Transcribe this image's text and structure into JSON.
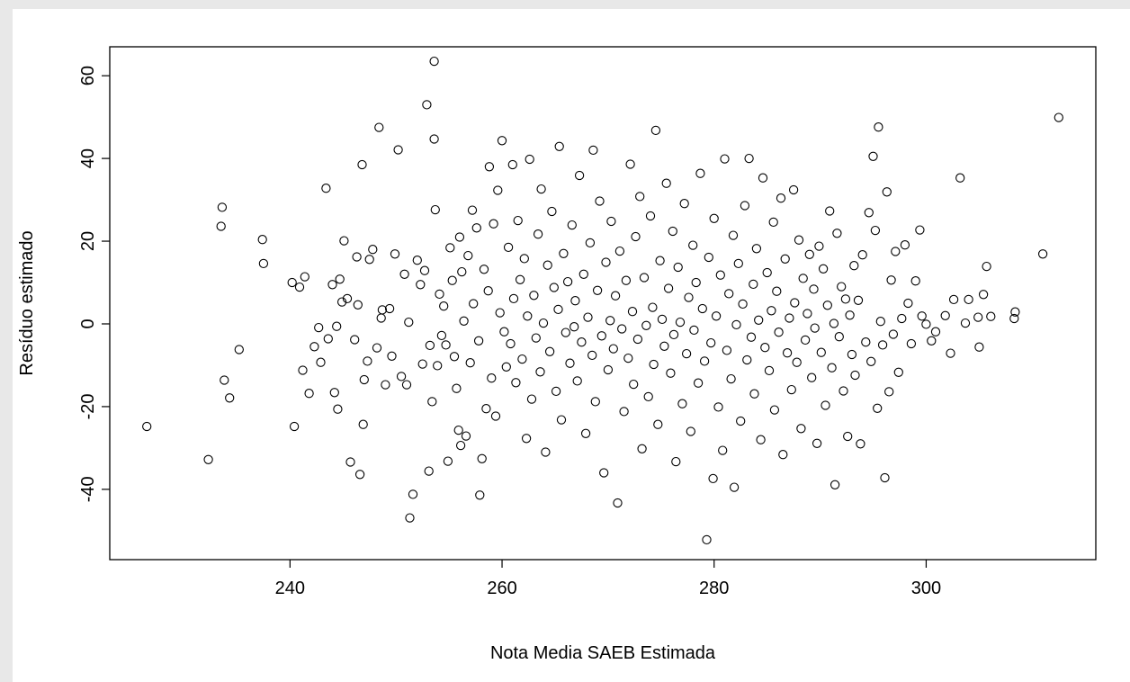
{
  "chart_data": {
    "type": "scatter",
    "title": "",
    "xlabel": "Nota Media SAEB Estimada",
    "ylabel": "Resíduo estimado",
    "xlim": [
      223,
      316
    ],
    "ylim": [
      -57,
      67
    ],
    "x_ticks": [
      240,
      260,
      280,
      300
    ],
    "y_ticks": [
      -40,
      -20,
      0,
      20,
      40,
      60
    ],
    "x_tick_labels": [
      "240",
      "260",
      "280",
      "300"
    ],
    "y_tick_labels": [
      "-40",
      "-20",
      "0",
      "20",
      "40",
      "60"
    ],
    "grid": false,
    "legend": "none",
    "marker": "open-circle",
    "marker_color": "#000000",
    "points": [
      [
        226.5,
        -24.8
      ],
      [
        232.3,
        -32.8
      ],
      [
        233.6,
        28.2
      ],
      [
        233.5,
        23.6
      ],
      [
        233.8,
        -13.6
      ],
      [
        234.3,
        -17.9
      ],
      [
        235.2,
        -6.2
      ],
      [
        237.4,
        20.4
      ],
      [
        237.5,
        14.6
      ],
      [
        240.2,
        10.0
      ],
      [
        240.4,
        -24.8
      ],
      [
        240.9,
        8.9
      ],
      [
        241.2,
        -11.2
      ],
      [
        241.4,
        11.4
      ],
      [
        241.8,
        -16.8
      ],
      [
        242.3,
        -5.5
      ],
      [
        242.7,
        -0.9
      ],
      [
        242.9,
        -9.3
      ],
      [
        243.4,
        32.8
      ],
      [
        243.6,
        -3.6
      ],
      [
        244.0,
        9.5
      ],
      [
        244.2,
        -16.6
      ],
      [
        244.4,
        -0.6
      ],
      [
        244.5,
        -20.6
      ],
      [
        244.7,
        10.8
      ],
      [
        244.9,
        5.3
      ],
      [
        245.1,
        20.1
      ],
      [
        245.4,
        6.1
      ],
      [
        245.7,
        -33.4
      ],
      [
        246.1,
        -3.8
      ],
      [
        246.3,
        16.2
      ],
      [
        246.4,
        4.6
      ],
      [
        246.6,
        -36.4
      ],
      [
        246.8,
        38.5
      ],
      [
        246.9,
        -24.3
      ],
      [
        247.0,
        -13.5
      ],
      [
        247.3,
        -9.0
      ],
      [
        247.5,
        15.6
      ],
      [
        247.8,
        18.0
      ],
      [
        248.2,
        -5.8
      ],
      [
        248.4,
        47.5
      ],
      [
        248.6,
        1.4
      ],
      [
        248.7,
        3.4
      ],
      [
        249.0,
        -14.7
      ],
      [
        249.4,
        3.7
      ],
      [
        249.6,
        -7.8
      ],
      [
        249.9,
        16.9
      ],
      [
        250.2,
        42.1
      ],
      [
        250.5,
        -12.7
      ],
      [
        250.8,
        12.0
      ],
      [
        251.0,
        -14.7
      ],
      [
        251.2,
        0.4
      ],
      [
        251.3,
        -46.9
      ],
      [
        251.6,
        -41.2
      ],
      [
        252.0,
        15.4
      ],
      [
        252.3,
        9.5
      ],
      [
        252.5,
        -9.7
      ],
      [
        252.7,
        12.9
      ],
      [
        252.9,
        53.0
      ],
      [
        253.1,
        -35.6
      ],
      [
        253.2,
        -5.2
      ],
      [
        253.4,
        -18.8
      ],
      [
        253.6,
        44.7
      ],
      [
        253.6,
        63.5
      ],
      [
        253.7,
        27.6
      ],
      [
        253.9,
        -10.1
      ],
      [
        254.1,
        7.2
      ],
      [
        254.3,
        -2.8
      ],
      [
        254.5,
        4.3
      ],
      [
        254.7,
        -5.1
      ],
      [
        254.9,
        -33.2
      ],
      [
        255.1,
        18.4
      ],
      [
        255.3,
        10.5
      ],
      [
        255.5,
        -7.9
      ],
      [
        255.7,
        -15.6
      ],
      [
        255.9,
        -25.7
      ],
      [
        256.0,
        21.0
      ],
      [
        256.1,
        -29.4
      ],
      [
        256.2,
        12.6
      ],
      [
        256.4,
        0.7
      ],
      [
        256.6,
        -27.1
      ],
      [
        256.8,
        16.5
      ],
      [
        257.0,
        -9.4
      ],
      [
        257.2,
        27.5
      ],
      [
        257.3,
        4.9
      ],
      [
        257.6,
        23.2
      ],
      [
        257.8,
        -4.1
      ],
      [
        257.9,
        -41.4
      ],
      [
        258.1,
        -32.6
      ],
      [
        258.3,
        13.2
      ],
      [
        258.5,
        -20.5
      ],
      [
        258.7,
        8.0
      ],
      [
        258.8,
        38.0
      ],
      [
        259.0,
        -13.1
      ],
      [
        259.2,
        24.2
      ],
      [
        259.4,
        -22.3
      ],
      [
        259.6,
        32.3
      ],
      [
        259.8,
        2.7
      ],
      [
        260.0,
        44.3
      ],
      [
        260.2,
        -1.9
      ],
      [
        260.4,
        -10.4
      ],
      [
        260.6,
        18.5
      ],
      [
        260.8,
        -4.8
      ],
      [
        261.0,
        38.5
      ],
      [
        261.1,
        6.1
      ],
      [
        261.3,
        -14.2
      ],
      [
        261.5,
        25.0
      ],
      [
        261.7,
        10.7
      ],
      [
        261.9,
        -8.5
      ],
      [
        262.1,
        15.8
      ],
      [
        262.3,
        -27.7
      ],
      [
        262.4,
        1.9
      ],
      [
        262.6,
        39.8
      ],
      [
        262.8,
        -18.2
      ],
      [
        263.0,
        6.9
      ],
      [
        263.2,
        -3.4
      ],
      [
        263.4,
        21.7
      ],
      [
        263.6,
        -11.6
      ],
      [
        263.7,
        32.6
      ],
      [
        263.9,
        0.2
      ],
      [
        264.1,
        -31.0
      ],
      [
        264.3,
        14.2
      ],
      [
        264.5,
        -6.7
      ],
      [
        264.7,
        27.2
      ],
      [
        264.9,
        8.8
      ],
      [
        265.1,
        -16.3
      ],
      [
        265.3,
        3.5
      ],
      [
        265.4,
        42.9
      ],
      [
        265.6,
        -23.2
      ],
      [
        265.8,
        17.0
      ],
      [
        266.0,
        -2.1
      ],
      [
        266.2,
        10.2
      ],
      [
        266.4,
        -9.5
      ],
      [
        266.6,
        23.9
      ],
      [
        266.8,
        -0.7
      ],
      [
        266.9,
        5.6
      ],
      [
        267.1,
        -13.8
      ],
      [
        267.3,
        35.9
      ],
      [
        267.5,
        -4.4
      ],
      [
        267.7,
        12.0
      ],
      [
        267.9,
        -26.5
      ],
      [
        268.1,
        1.6
      ],
      [
        268.3,
        19.6
      ],
      [
        268.5,
        -7.6
      ],
      [
        268.6,
        42.0
      ],
      [
        268.8,
        -18.8
      ],
      [
        269.0,
        8.1
      ],
      [
        269.2,
        29.7
      ],
      [
        269.4,
        -2.9
      ],
      [
        269.6,
        -36.0
      ],
      [
        269.8,
        14.9
      ],
      [
        270.0,
        -11.1
      ],
      [
        270.2,
        0.8
      ],
      [
        270.3,
        24.8
      ],
      [
        270.5,
        -6.0
      ],
      [
        270.7,
        6.8
      ],
      [
        270.9,
        -43.3
      ],
      [
        271.1,
        17.6
      ],
      [
        271.3,
        -1.2
      ],
      [
        271.5,
        -21.2
      ],
      [
        271.7,
        10.5
      ],
      [
        271.9,
        -8.3
      ],
      [
        272.1,
        38.6
      ],
      [
        272.3,
        3.0
      ],
      [
        272.4,
        -14.6
      ],
      [
        272.6,
        21.1
      ],
      [
        272.8,
        -3.7
      ],
      [
        273.0,
        30.8
      ],
      [
        273.2,
        -30.2
      ],
      [
        273.4,
        11.2
      ],
      [
        273.6,
        -0.4
      ],
      [
        273.8,
        -17.6
      ],
      [
        274.0,
        26.1
      ],
      [
        274.2,
        4.0
      ],
      [
        274.3,
        -9.8
      ],
      [
        274.5,
        46.8
      ],
      [
        274.7,
        -24.3
      ],
      [
        274.9,
        15.3
      ],
      [
        275.1,
        1.1
      ],
      [
        275.3,
        -5.4
      ],
      [
        275.5,
        34.0
      ],
      [
        275.7,
        8.6
      ],
      [
        275.9,
        -11.9
      ],
      [
        276.1,
        22.4
      ],
      [
        276.2,
        -2.6
      ],
      [
        276.4,
        -33.3
      ],
      [
        276.6,
        13.7
      ],
      [
        276.8,
        0.4
      ],
      [
        277.0,
        -19.3
      ],
      [
        277.2,
        29.1
      ],
      [
        277.4,
        -7.2
      ],
      [
        277.6,
        6.4
      ],
      [
        277.8,
        -26.0
      ],
      [
        278.0,
        19.0
      ],
      [
        278.1,
        -1.5
      ],
      [
        278.3,
        10.0
      ],
      [
        278.5,
        -14.3
      ],
      [
        278.7,
        36.4
      ],
      [
        278.9,
        3.7
      ],
      [
        279.1,
        -9.0
      ],
      [
        279.3,
        -52.2
      ],
      [
        279.5,
        16.1
      ],
      [
        279.7,
        -4.6
      ],
      [
        279.9,
        -37.4
      ],
      [
        280.0,
        25.5
      ],
      [
        280.2,
        1.9
      ],
      [
        280.4,
        -20.1
      ],
      [
        280.6,
        11.8
      ],
      [
        280.8,
        -30.6
      ],
      [
        281.0,
        39.9
      ],
      [
        281.2,
        -6.4
      ],
      [
        281.4,
        7.3
      ],
      [
        281.6,
        -13.3
      ],
      [
        281.8,
        21.4
      ],
      [
        281.9,
        -39.5
      ],
      [
        282.1,
        -0.2
      ],
      [
        282.3,
        14.6
      ],
      [
        282.5,
        -23.5
      ],
      [
        282.7,
        4.8
      ],
      [
        282.9,
        28.6
      ],
      [
        283.1,
        -8.7
      ],
      [
        283.3,
        40.0
      ],
      [
        283.5,
        -3.2
      ],
      [
        283.7,
        9.6
      ],
      [
        283.8,
        -16.9
      ],
      [
        284.0,
        18.2
      ],
      [
        284.2,
        0.9
      ],
      [
        284.4,
        -28.0
      ],
      [
        284.6,
        35.3
      ],
      [
        284.8,
        -5.7
      ],
      [
        285.0,
        12.4
      ],
      [
        285.2,
        -11.3
      ],
      [
        285.4,
        3.2
      ],
      [
        285.6,
        24.6
      ],
      [
        285.7,
        -20.8
      ],
      [
        285.9,
        7.9
      ],
      [
        286.1,
        -2.0
      ],
      [
        286.3,
        30.4
      ],
      [
        286.5,
        -31.6
      ],
      [
        286.7,
        15.7
      ],
      [
        286.9,
        -7.0
      ],
      [
        287.1,
        1.4
      ],
      [
        287.3,
        -15.9
      ],
      [
        287.5,
        32.4
      ],
      [
        287.6,
        5.1
      ],
      [
        287.8,
        -9.3
      ],
      [
        288.0,
        20.3
      ],
      [
        288.2,
        -25.3
      ],
      [
        288.4,
        11.0
      ],
      [
        288.6,
        -3.9
      ],
      [
        288.8,
        2.5
      ],
      [
        289.0,
        16.8
      ],
      [
        289.2,
        -13.0
      ],
      [
        289.4,
        8.4
      ],
      [
        289.5,
        -1.0
      ],
      [
        289.7,
        -28.9
      ],
      [
        289.9,
        18.8
      ],
      [
        290.1,
        -6.9
      ],
      [
        290.3,
        13.3
      ],
      [
        290.5,
        -19.7
      ],
      [
        290.7,
        4.5
      ],
      [
        290.9,
        27.3
      ],
      [
        291.1,
        -10.6
      ],
      [
        291.3,
        0.1
      ],
      [
        291.4,
        -38.9
      ],
      [
        291.6,
        21.9
      ],
      [
        291.8,
        -3.1
      ],
      [
        292.0,
        9.0
      ],
      [
        292.2,
        -16.2
      ],
      [
        292.4,
        6.0
      ],
      [
        292.6,
        -27.2
      ],
      [
        292.8,
        2.1
      ],
      [
        293.0,
        -7.4
      ],
      [
        293.2,
        14.1
      ],
      [
        293.3,
        -12.4
      ],
      [
        293.6,
        5.7
      ],
      [
        293.8,
        -29.0
      ],
      [
        294.0,
        16.7
      ],
      [
        294.3,
        -4.4
      ],
      [
        294.6,
        26.9
      ],
      [
        294.8,
        -9.1
      ],
      [
        295.0,
        40.5
      ],
      [
        295.2,
        22.6
      ],
      [
        295.4,
        -20.4
      ],
      [
        295.5,
        47.6
      ],
      [
        295.7,
        0.6
      ],
      [
        295.9,
        -5.1
      ],
      [
        296.1,
        -37.2
      ],
      [
        296.3,
        31.9
      ],
      [
        296.5,
        -16.4
      ],
      [
        296.7,
        10.6
      ],
      [
        296.9,
        -2.5
      ],
      [
        297.1,
        17.5
      ],
      [
        297.4,
        -11.7
      ],
      [
        297.7,
        1.3
      ],
      [
        298.0,
        19.1
      ],
      [
        298.3,
        5.0
      ],
      [
        298.6,
        -4.8
      ],
      [
        299.0,
        10.4
      ],
      [
        299.4,
        22.7
      ],
      [
        299.6,
        1.9
      ],
      [
        300.0,
        -0.1
      ],
      [
        300.5,
        -4.1
      ],
      [
        300.9,
        -1.9
      ],
      [
        301.8,
        2.0
      ],
      [
        302.3,
        -7.1
      ],
      [
        302.6,
        5.9
      ],
      [
        303.2,
        35.3
      ],
      [
        303.7,
        0.2
      ],
      [
        304.0,
        5.9
      ],
      [
        304.9,
        1.6
      ],
      [
        305.0,
        -5.6
      ],
      [
        305.4,
        7.1
      ],
      [
        305.7,
        13.9
      ],
      [
        306.1,
        1.8
      ],
      [
        308.3,
        1.3
      ],
      [
        308.4,
        2.9
      ],
      [
        311.0,
        16.9
      ],
      [
        312.5,
        49.9
      ]
    ]
  }
}
